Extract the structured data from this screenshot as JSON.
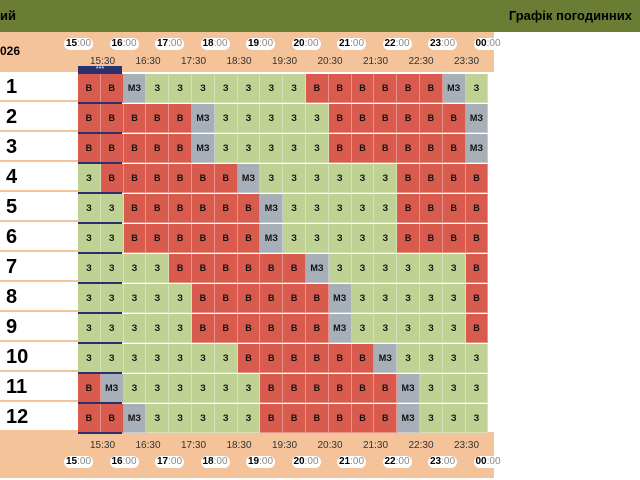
{
  "page": {
    "top_left_fragment": "ий",
    "top_right_title": "Графік погодинних",
    "year_fragment": "026",
    "dotbar": "***"
  },
  "hours_top": [
    "15",
    "16",
    "17",
    "18",
    "19",
    "20",
    "21",
    "22",
    "23",
    "00"
  ],
  "hours_suffix": [
    ":00",
    ":00",
    ":00",
    ":00",
    ":00",
    ":00",
    ":00",
    ":00",
    ":00",
    ":00"
  ],
  "half_hours": [
    "15:30",
    "16:30",
    "17:30",
    "18:30",
    "19:30",
    "20:30",
    "21:30",
    "22:30",
    "23:30"
  ],
  "rows": [
    {
      "label": "1",
      "cells": [
        "В",
        "В",
        "МЗ",
        "З",
        "З",
        "З",
        "З",
        "З",
        "З",
        "З",
        "В",
        "В",
        "В",
        "В",
        "В",
        "В",
        "МЗ",
        "З"
      ]
    },
    {
      "label": "2",
      "cells": [
        "В",
        "В",
        "В",
        "В",
        "В",
        "МЗ",
        "З",
        "З",
        "З",
        "З",
        "З",
        "В",
        "В",
        "В",
        "В",
        "В",
        "В",
        "МЗ"
      ]
    },
    {
      "label": "3",
      "cells": [
        "В",
        "В",
        "В",
        "В",
        "В",
        "МЗ",
        "З",
        "З",
        "З",
        "З",
        "З",
        "В",
        "В",
        "В",
        "В",
        "В",
        "В",
        "МЗ"
      ]
    },
    {
      "label": "4",
      "cells": [
        "З",
        "В",
        "В",
        "В",
        "В",
        "В",
        "В",
        "МЗ",
        "З",
        "З",
        "З",
        "З",
        "З",
        "З",
        "В",
        "В",
        "В",
        "В"
      ]
    },
    {
      "label": "5",
      "cells": [
        "З",
        "З",
        "В",
        "В",
        "В",
        "В",
        "В",
        "В",
        "МЗ",
        "З",
        "З",
        "З",
        "З",
        "З",
        "В",
        "В",
        "В",
        "В"
      ]
    },
    {
      "label": "6",
      "cells": [
        "З",
        "З",
        "В",
        "В",
        "В",
        "В",
        "В",
        "В",
        "МЗ",
        "З",
        "З",
        "З",
        "З",
        "З",
        "В",
        "В",
        "В",
        "В"
      ]
    },
    {
      "label": "7",
      "cells": [
        "З",
        "З",
        "З",
        "З",
        "В",
        "В",
        "В",
        "В",
        "В",
        "В",
        "МЗ",
        "З",
        "З",
        "З",
        "З",
        "З",
        "З",
        "В"
      ]
    },
    {
      "label": "8",
      "cells": [
        "З",
        "З",
        "З",
        "З",
        "З",
        "В",
        "В",
        "В",
        "В",
        "В",
        "В",
        "МЗ",
        "З",
        "З",
        "З",
        "З",
        "З",
        "В"
      ]
    },
    {
      "label": "9",
      "cells": [
        "З",
        "З",
        "З",
        "З",
        "З",
        "В",
        "В",
        "В",
        "В",
        "В",
        "В",
        "МЗ",
        "З",
        "З",
        "З",
        "З",
        "З",
        "В"
      ]
    },
    {
      "label": "10",
      "cells": [
        "З",
        "З",
        "З",
        "З",
        "З",
        "З",
        "З",
        "В",
        "В",
        "В",
        "В",
        "В",
        "В",
        "МЗ",
        "З",
        "З",
        "З",
        "З"
      ]
    },
    {
      "label": "11",
      "cells": [
        "В",
        "МЗ",
        "З",
        "З",
        "З",
        "З",
        "З",
        "З",
        "В",
        "В",
        "В",
        "В",
        "В",
        "В",
        "МЗ",
        "З",
        "З",
        "З"
      ]
    },
    {
      "label": "12",
      "cells": [
        "В",
        "В",
        "МЗ",
        "З",
        "З",
        "З",
        "З",
        "З",
        "В",
        "В",
        "В",
        "В",
        "В",
        "В",
        "МЗ",
        "З",
        "З",
        "З"
      ]
    }
  ],
  "colors": {
    "outage": "#d85b4e",
    "power_on": "#bfd294",
    "maybe": "#a7afb8",
    "header": "#f5c39a",
    "topbar": "#6b7d35"
  }
}
